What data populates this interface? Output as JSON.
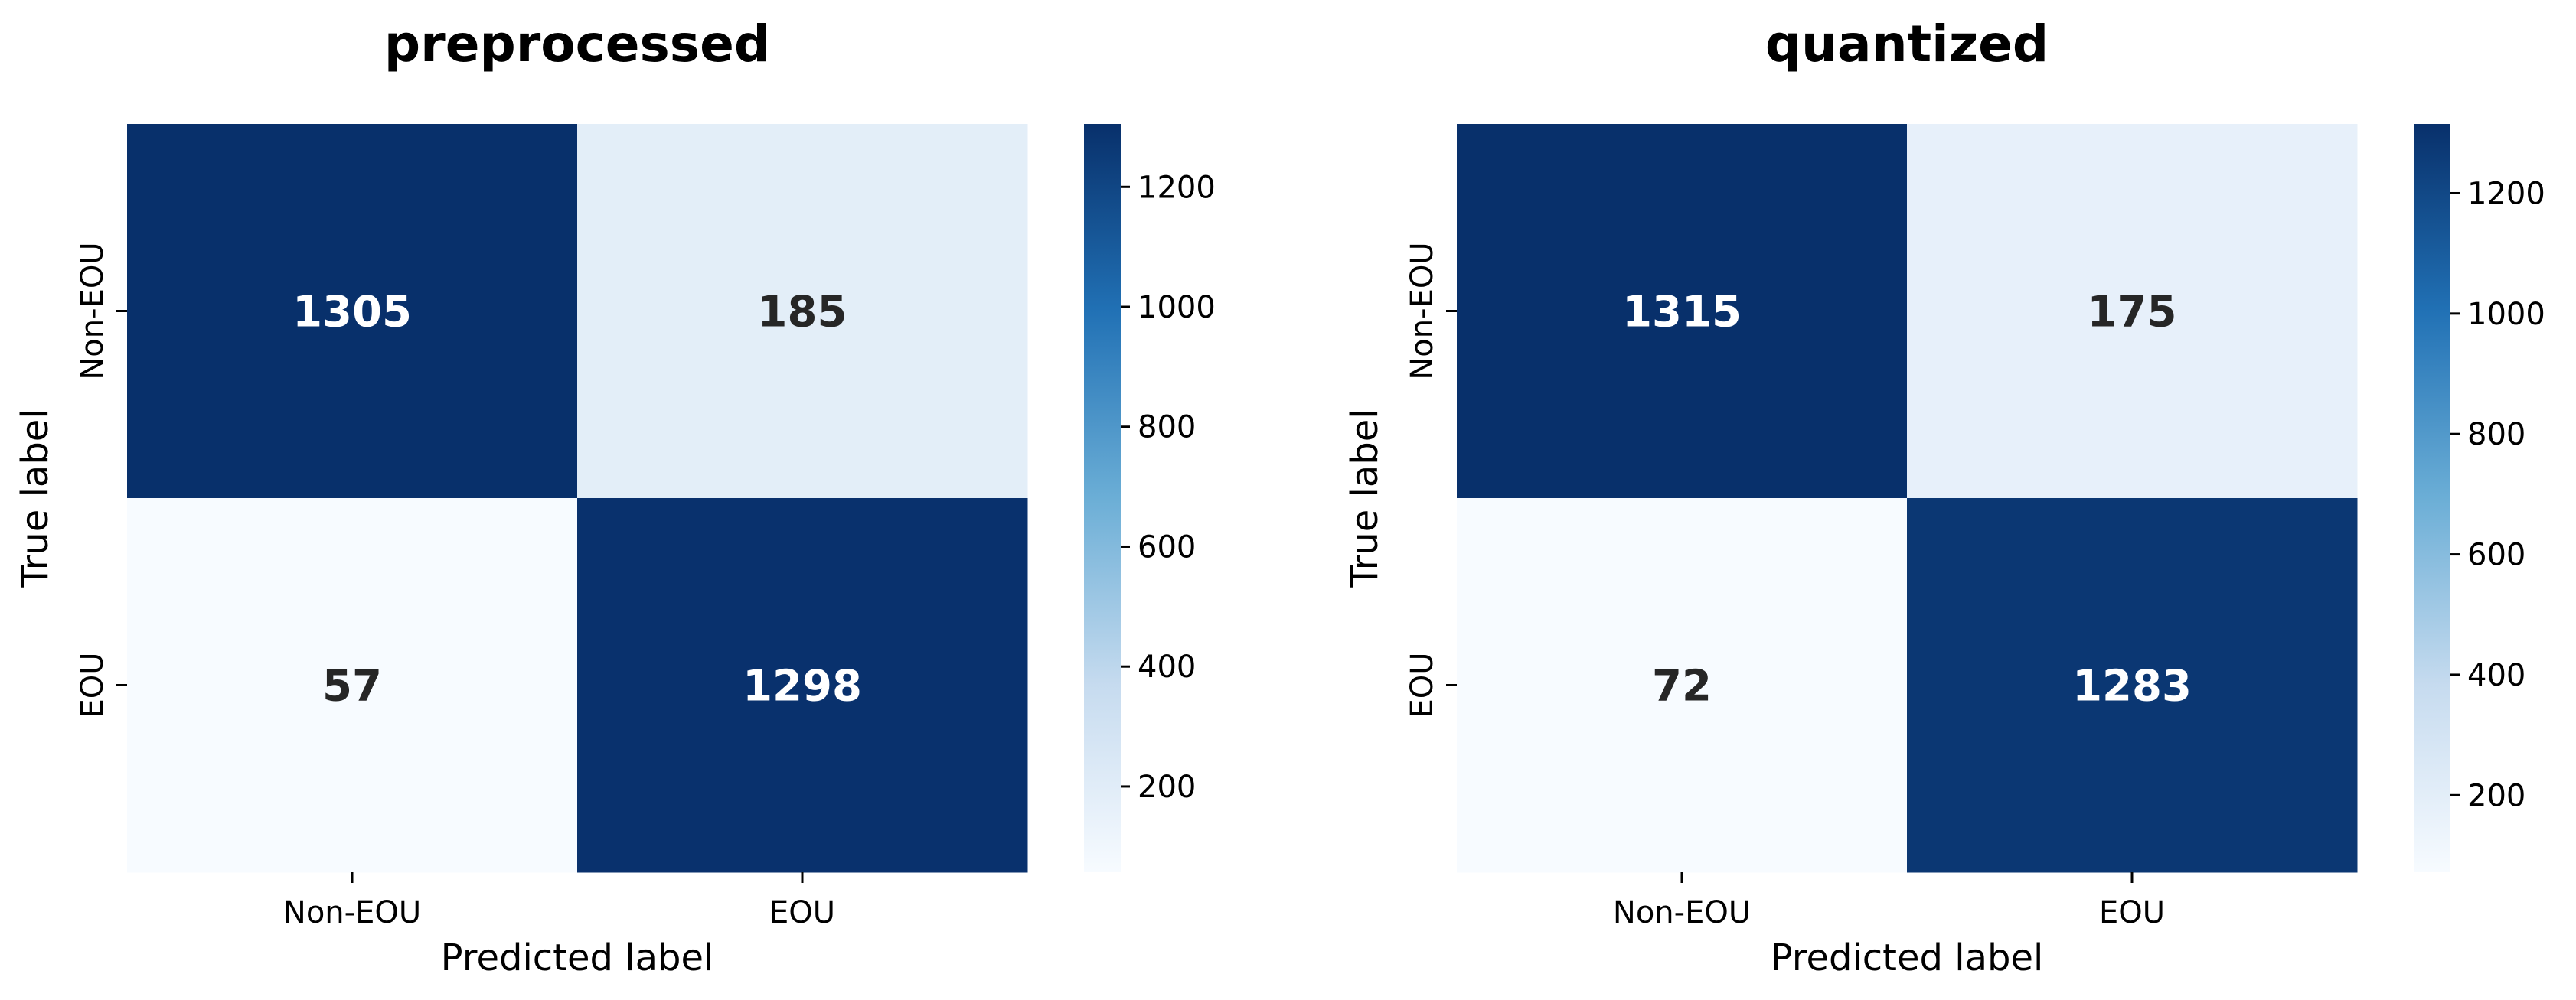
{
  "chart_data": [
    {
      "type": "heatmap",
      "title": "preprocessed",
      "xlabel": "Predicted label",
      "ylabel": "True label",
      "x_categories": [
        "Non-EOU",
        "EOU"
      ],
      "y_categories": [
        "Non-EOU",
        "EOU"
      ],
      "values": [
        [
          1305,
          185
        ],
        [
          57,
          1298
        ]
      ],
      "colorbar": {
        "range": [
          57,
          1305
        ],
        "ticks": [
          200,
          400,
          600,
          800,
          1000,
          1200
        ]
      },
      "colormap": "Blues"
    },
    {
      "type": "heatmap",
      "title": "quantized",
      "xlabel": "Predicted label",
      "ylabel": "True label",
      "x_categories": [
        "Non-EOU",
        "EOU"
      ],
      "y_categories": [
        "Non-EOU",
        "EOU"
      ],
      "values": [
        [
          1315,
          175
        ],
        [
          72,
          1283
        ]
      ],
      "colorbar": {
        "range": [
          72,
          1315
        ],
        "ticks": [
          200,
          400,
          600,
          800,
          1000,
          1200
        ]
      },
      "colormap": "Blues"
    }
  ],
  "colors": {
    "cmap_low": "#f7fbff",
    "cmap_mid1": "#c6dbef",
    "cmap_mid2": "#6baed6",
    "cmap_mid3": "#2171b5",
    "cmap_high": "#08306b",
    "text_dark": "#262626",
    "text_light": "#ffffff"
  }
}
